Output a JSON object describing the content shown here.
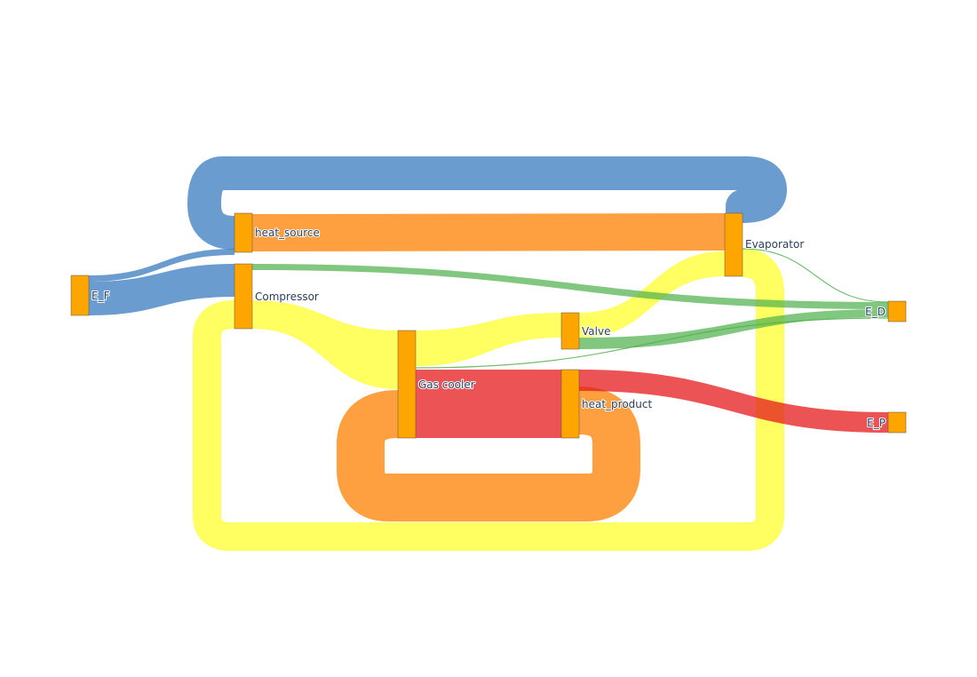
{
  "diagram": {
    "type": "sankey",
    "title": "",
    "colors": {
      "blue": "#3a7bbf",
      "orange": "#ff8000",
      "yellow": "#ffff00",
      "red": "#e41a1c",
      "green": "#4daf4a",
      "node": "#ffa500"
    },
    "nodes": [
      {
        "id": "e_f",
        "label": "E_F"
      },
      {
        "id": "heat_source",
        "label": "heat_source"
      },
      {
        "id": "compressor",
        "label": "Compressor"
      },
      {
        "id": "gas_cooler",
        "label": "Gas cooler"
      },
      {
        "id": "valve",
        "label": "Valve"
      },
      {
        "id": "heat_product",
        "label": "heat_product"
      },
      {
        "id": "evaporator",
        "label": "Evaporator"
      },
      {
        "id": "e_d",
        "label": "E_D"
      },
      {
        "id": "e_p",
        "label": "E_P"
      }
    ],
    "links": [
      {
        "id": "ef-heatsource",
        "source": "E_F",
        "target": "heat_source",
        "color": "blue"
      },
      {
        "id": "ef-compressor",
        "source": "E_F",
        "target": "Compressor",
        "color": "blue"
      },
      {
        "id": "evaporator-heatsource",
        "source": "Evaporator",
        "target": "heat_source",
        "color": "blue"
      },
      {
        "id": "heatsource-evaporator",
        "source": "heat_source",
        "target": "Evaporator",
        "color": "orange"
      },
      {
        "id": "compressor-gascooler",
        "source": "Compressor",
        "target": "Gas cooler",
        "color": "yellow"
      },
      {
        "id": "gascooler-valve",
        "source": "Gas cooler",
        "target": "Valve",
        "color": "yellow"
      },
      {
        "id": "valve-evaporator",
        "source": "Valve",
        "target": "Evaporator",
        "color": "yellow"
      },
      {
        "id": "evaporator-compressor",
        "source": "Evaporator",
        "target": "Compressor",
        "color": "yellow"
      },
      {
        "id": "gascooler-heatproduct",
        "source": "Gas cooler",
        "target": "heat_product",
        "color": "red"
      },
      {
        "id": "heatproduct-gascooler",
        "source": "heat_product",
        "target": "Gas cooler",
        "color": "orange"
      },
      {
        "id": "heatproduct-ep",
        "source": "heat_product",
        "target": "E_P",
        "color": "red"
      },
      {
        "id": "compressor-ed",
        "source": "Compressor",
        "target": "E_D",
        "color": "green"
      },
      {
        "id": "valve-ed",
        "source": "Valve",
        "target": "E_D",
        "color": "green"
      },
      {
        "id": "gascooler-ed",
        "source": "Gas cooler",
        "target": "E_D",
        "color": "green"
      },
      {
        "id": "evaporator-ed",
        "source": "Evaporator",
        "target": "E_D",
        "color": "green"
      }
    ]
  }
}
